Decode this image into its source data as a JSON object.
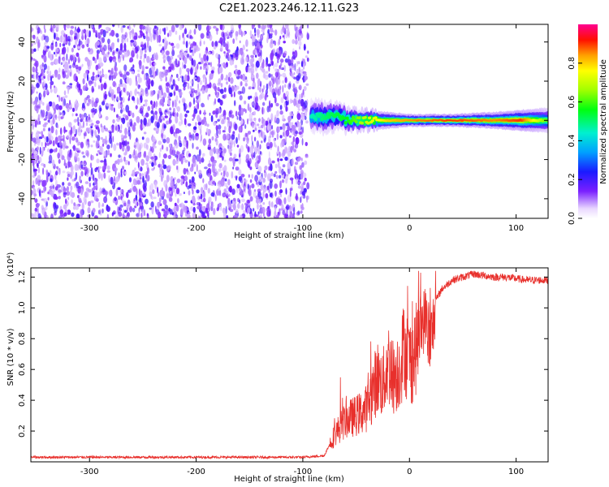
{
  "figure": {
    "title": "C2E1.2023.246.12.11.G23"
  },
  "chart_data": [
    {
      "type": "heatmap",
      "xlabel": "Height of straight line (km)",
      "ylabel": "Frequency (Hz)",
      "xlim": [
        -355,
        130
      ],
      "ylim": [
        -50,
        49
      ],
      "xticks": [
        -300,
        -200,
        -100,
        0,
        100
      ],
      "yticks": [
        -40,
        -20,
        0,
        20,
        40
      ],
      "colorbar": {
        "label": "Normalized spectral amplitude",
        "range": [
          0,
          1
        ],
        "ticks": [
          0.0,
          0.2,
          0.4,
          0.6,
          0.8
        ],
        "colormap": "rainbow"
      },
      "regions": [
        {
          "x_range": [
            -355,
            -95
          ],
          "y_range": [
            -50,
            49
          ],
          "description_value": "scattered noise, amplitude ~0.1-0.3"
        },
        {
          "x_range": [
            -95,
            130
          ],
          "center_frequency": 0,
          "peak_amplitude": 0.9
        }
      ],
      "ridge": [
        {
          "x": -92,
          "width_hz": 4,
          "amp": 0.45
        },
        {
          "x": -80,
          "width_hz": 4,
          "amp": 0.5
        },
        {
          "x": -60,
          "width_hz": 3,
          "amp": 0.55
        },
        {
          "x": -40,
          "width_hz": 2.5,
          "amp": 0.7
        },
        {
          "x": -20,
          "width_hz": 2,
          "amp": 0.8
        },
        {
          "x": 0,
          "width_hz": 1.5,
          "amp": 0.85
        },
        {
          "x": 40,
          "width_hz": 1.5,
          "amp": 0.9
        },
        {
          "x": 80,
          "width_hz": 2,
          "amp": 0.85
        },
        {
          "x": 105,
          "width_hz": 2.5,
          "amp": 0.9
        },
        {
          "x": 130,
          "width_hz": 3,
          "amp": 0.6
        }
      ]
    },
    {
      "type": "line",
      "xlabel": "Height of straight line (km)",
      "ylabel": "SNR (10 * v/v)",
      "y_multiplier": "(x10⁴)",
      "xlim": [
        -355,
        130
      ],
      "ylim": [
        0,
        1.26
      ],
      "xticks": [
        -300,
        -200,
        -100,
        0,
        100
      ],
      "yticks": [
        0.2,
        0.4,
        0.6,
        0.8,
        1.0,
        1.2
      ],
      "color": "#e8302c",
      "series": [
        {
          "x": [
            -355,
            -300,
            -250,
            -200,
            -150,
            -100,
            -80,
            -70,
            -60,
            -50,
            -45,
            -40,
            -35,
            -30,
            -25,
            -20,
            -15,
            -10,
            -5,
            0,
            5,
            10,
            15,
            20,
            25,
            30,
            40,
            50,
            60,
            70,
            80,
            90,
            100,
            110,
            120,
            130
          ],
          "y": [
            0.03,
            0.03,
            0.03,
            0.03,
            0.03,
            0.03,
            0.04,
            0.18,
            0.27,
            0.3,
            0.32,
            0.35,
            0.45,
            0.55,
            0.5,
            0.65,
            0.55,
            0.6,
            0.75,
            0.65,
            0.7,
            0.85,
            0.95,
            0.75,
            1.05,
            1.12,
            1.18,
            1.2,
            1.22,
            1.21,
            1.2,
            1.2,
            1.19,
            1.18,
            1.18,
            1.18
          ]
        }
      ]
    }
  ]
}
